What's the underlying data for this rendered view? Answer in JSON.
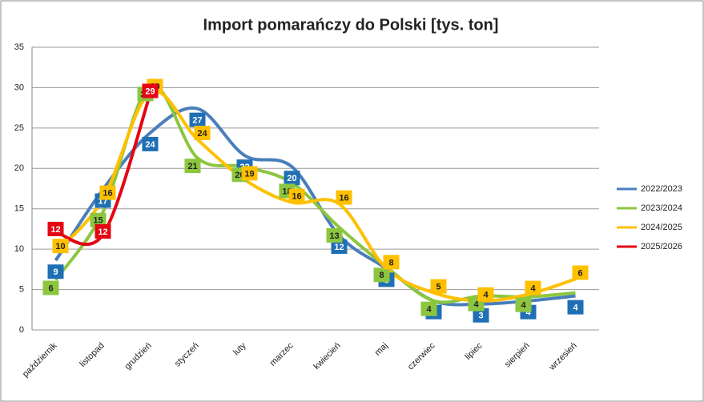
{
  "chart_data": {
    "type": "line",
    "title": "Import pomarańczy do Polski [tys. ton]",
    "categories": [
      "październik",
      "listopad",
      "grudzień",
      "styczeń",
      "luty",
      "marzec",
      "kwiecień",
      "maj",
      "czerwiec",
      "lipiec",
      "sierpień",
      "wrzesień"
    ],
    "ylim": [
      0,
      35
    ],
    "yticks": [
      0,
      5,
      10,
      15,
      20,
      25,
      30,
      35
    ],
    "grid": true,
    "legend": "right",
    "series": [
      {
        "name": "2022/2023",
        "color": "#4a7ebb",
        "label_color": "#1f6fb5",
        "values": [
          8.6,
          17.4,
          24.4,
          27.4,
          21.6,
          20.2,
          11.7,
          7.6,
          3.6,
          3.2,
          3.6,
          4.2
        ],
        "value_labels": [
          "9",
          "17",
          "24",
          "27",
          "22",
          "20",
          "12",
          "8",
          "4",
          "3",
          "4",
          "4"
        ]
      },
      {
        "name": "2023/2024",
        "color": "#8cc63f",
        "label_color": "#8cc63f",
        "values": [
          6.2,
          14.6,
          30.2,
          21.3,
          20.2,
          18.2,
          12.7,
          7.8,
          3.6,
          4.2,
          4.1,
          4.6
        ],
        "value_labels": [
          "6",
          "15",
          "30",
          "21",
          "20",
          "18",
          "13",
          "8",
          "4",
          "4",
          "4",
          null
        ]
      },
      {
        "name": "2024/2025",
        "color": "#ffc000",
        "label_color": "#ffc000",
        "values": [
          9.6,
          16.2,
          29.4,
          23.6,
          18.6,
          15.8,
          15.6,
          7.6,
          4.6,
          3.6,
          4.4,
          6.3
        ],
        "value_labels": [
          "10",
          "16",
          "29",
          "24",
          "19",
          "16",
          "16",
          "8",
          "5",
          "4",
          "4",
          "6"
        ]
      },
      {
        "name": "2025/2026",
        "color": "#e30613",
        "label_color": "#e30613",
        "values": [
          12.1,
          11.8,
          29.2,
          null,
          null,
          null,
          null,
          null,
          null,
          null,
          null,
          null
        ],
        "value_labels": [
          "12",
          "12",
          "29",
          null,
          null,
          null,
          null,
          null,
          null,
          null,
          null,
          null
        ]
      }
    ]
  }
}
